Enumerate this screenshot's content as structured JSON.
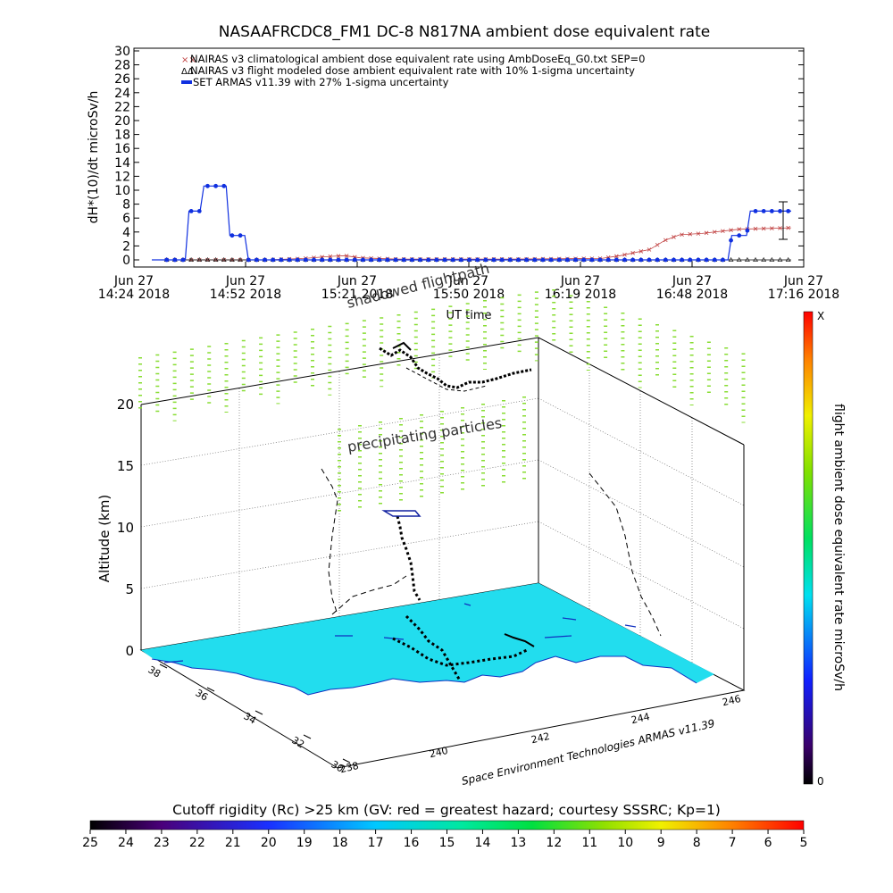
{
  "top_chart": {
    "title": "NASAAFRCDC8_FM1 DC-8    N817NA ambient dose equivalent rate",
    "ylabel": "dH*(10)/dt microSv/h",
    "xlabel": "UT time",
    "legend": [
      "NAIRAS v3 climatological ambient dose equivalent rate using AmbDoseEq_G0.txt SEP=0",
      "NAIRAS v3 flight modeled dose ambient equivalent rate with 10% 1-sigma uncertainty",
      "SET ARMAS v11.39 with 27% 1-sigma uncertainty"
    ],
    "y_ticks": [
      "0",
      "2",
      "4",
      "6",
      "8",
      "10",
      "12",
      "14",
      "16",
      "18",
      "20",
      "22",
      "24",
      "26",
      "28",
      "30"
    ],
    "x_ticks": [
      {
        "line1": "Jun 27",
        "line2": "14:24 2018"
      },
      {
        "line1": "Jun 27",
        "line2": "14:52 2018"
      },
      {
        "line1": "Jun 27",
        "line2": "15:21 2018"
      },
      {
        "line1": "Jun 27",
        "line2": "15:50 2018"
      },
      {
        "line1": "Jun 27",
        "line2": "16:19 2018"
      },
      {
        "line1": "Jun 27",
        "line2": "16:48 2018"
      },
      {
        "line1": "Jun 27",
        "line2": "17:16 2018"
      }
    ]
  },
  "chart_data": [
    {
      "type": "line",
      "title": "NASAAFRCDC8_FM1 DC-8    N817NA ambient dose equivalent rate",
      "xlabel": "UT time",
      "ylabel": "dH*(10)/dt microSv/h",
      "ylim": [
        0,
        30
      ],
      "xlim": [
        "14:24",
        "17:16"
      ],
      "grid": false,
      "legend_position": "top-left",
      "series": [
        {
          "name": "NAIRAS v3 climatological ambient dose equivalent rate using AmbDoseEq_G0.txt SEP=0",
          "color": "#c04040",
          "marker": "x",
          "x": [
            "14:24",
            "14:40",
            "14:55",
            "15:05",
            "15:12",
            "15:16",
            "15:20",
            "15:30",
            "16:00",
            "16:25",
            "16:30",
            "16:38",
            "16:42",
            "16:46",
            "16:52",
            "17:02",
            "17:16"
          ],
          "values": [
            0,
            0,
            0,
            0.2,
            0.5,
            0.6,
            0.3,
            0.1,
            0.1,
            0.2,
            0.6,
            1.5,
            2.8,
            3.6,
            3.8,
            4.4,
            4.6
          ]
        },
        {
          "name": "NAIRAS v3 flight modeled dose ambient equivalent rate with 10% 1-sigma uncertainty",
          "color": "#000000",
          "marker": "triangle",
          "x": [
            "14:24",
            "15:00",
            "15:30",
            "16:00",
            "16:30",
            "17:00",
            "17:16"
          ],
          "values": [
            0,
            0,
            0,
            0,
            0,
            0,
            0
          ]
        },
        {
          "name": "SET ARMAS v11.39 with 27% 1-sigma uncertainty",
          "color": "#1030e0",
          "marker": "circle",
          "x": [
            "14:24",
            "14:33",
            "14:34",
            "14:37",
            "14:38",
            "14:44",
            "14:45",
            "14:49",
            "14:50",
            "15:00",
            "16:30",
            "16:59",
            "17:00",
            "17:04",
            "17:05",
            "17:16"
          ],
          "values": [
            0,
            0,
            7,
            7,
            10.6,
            10.6,
            3.5,
            3.5,
            0,
            0,
            0,
            0,
            3.5,
            3.5,
            7,
            7
          ]
        }
      ]
    },
    {
      "type": "heatmap",
      "title": "",
      "zlabel": "Altitude (km)",
      "z_ticks": [
        "0",
        "5",
        "10",
        "15",
        "20"
      ],
      "lat_ticks": [
        "38",
        "36",
        "34",
        "32",
        "30"
      ],
      "lon_ticks": [
        "238",
        "240",
        "242",
        "244",
        "246"
      ],
      "colorbar_label": "flight ambient dose equivalent rate microSv/h",
      "colorbar_ticks": {
        "top": "X",
        "bottom": "0"
      },
      "annotations": [
        "shadowed flightpath",
        "precipitating particles",
        "Space Environment Technologies ARMAS v11.39"
      ]
    }
  ],
  "bottom_scale": {
    "title": "Cutoff rigidity (Rc) >25 km (GV: red = greatest hazard; courtesy SSSRC; Kp=1)",
    "ticks": [
      "25",
      "24",
      "23",
      "22",
      "21",
      "20",
      "19",
      "18",
      "17",
      "16",
      "15",
      "14",
      "13",
      "12",
      "11",
      "10",
      "9",
      "8",
      "7",
      "6",
      "5"
    ]
  },
  "colors": {
    "armas": "#1030e0",
    "nairas_clim": "#c04040",
    "ground_fill": "#22ddee",
    "particles": "#88dd33"
  }
}
